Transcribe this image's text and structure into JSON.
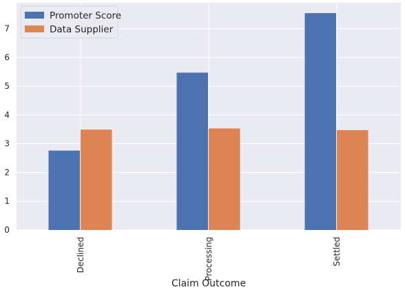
{
  "chart_data": {
    "type": "bar",
    "title": "",
    "xlabel": "Claim Outcome",
    "ylabel": "",
    "categories": [
      "Declined",
      "Processing",
      "Settled"
    ],
    "series": [
      {
        "name": "Promoter Score",
        "values": [
          2.76,
          5.47,
          7.54
        ],
        "color": "#4c72b0"
      },
      {
        "name": "Data Supplier",
        "values": [
          3.49,
          3.53,
          3.47
        ],
        "color": "#dd8452"
      }
    ],
    "ylim": [
      0,
      7.9
    ],
    "yticks": [
      "0",
      "1",
      "2",
      "3",
      "4",
      "5",
      "6",
      "7"
    ],
    "grid": true,
    "legend_position": "top-left",
    "x_tick_rotation": "vertical",
    "background_color": "#eaeaf2",
    "grid_color": "#ffffff"
  }
}
